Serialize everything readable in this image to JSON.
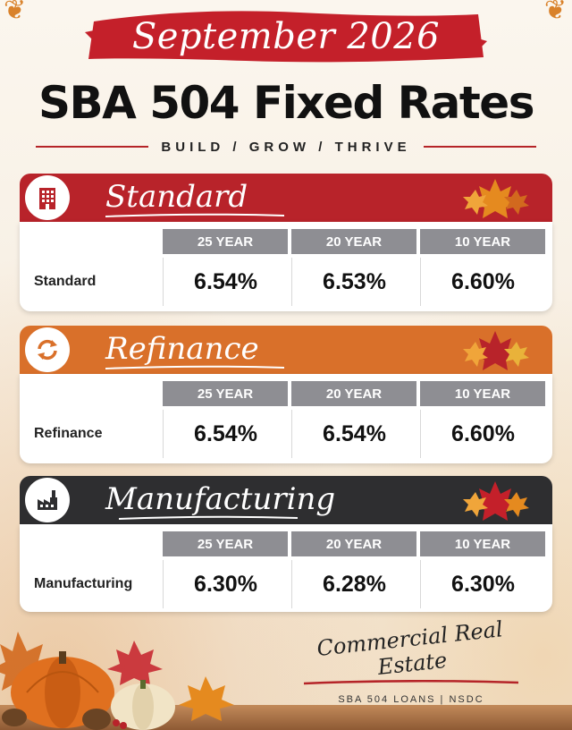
{
  "header": {
    "month": "September 2026",
    "title": "SBA 504 Fixed Rates",
    "tagline": "BUILD  /  GROW  /  THRIVE"
  },
  "colors": {
    "standard": "#b8232a",
    "refinance": "#d9702a",
    "manufacturing": "#2e2e30"
  },
  "cards": [
    {
      "name": "Standard",
      "icon": "building-icon",
      "row_label": "Standard",
      "columns": [
        "25 YEAR",
        "20 YEAR",
        "10 YEAR"
      ],
      "rates": [
        "6.54%",
        "6.53%",
        "6.60%"
      ]
    },
    {
      "name": "Refinance",
      "icon": "refresh-icon",
      "row_label": "Refinance",
      "columns": [
        "25 YEAR",
        "20 YEAR",
        "10 YEAR"
      ],
      "rates": [
        "6.54%",
        "6.54%",
        "6.60%"
      ]
    },
    {
      "name": "Manufacturing",
      "icon": "factory-icon",
      "row_label": "Manufacturing",
      "columns": [
        "25 YEAR",
        "20 YEAR",
        "10 YEAR"
      ],
      "rates": [
        "6.30%",
        "6.28%",
        "6.30%"
      ]
    }
  ],
  "footer": {
    "brand": "Commercial Real Estate",
    "sub": "SBA 504 LOANS  |  NSDC"
  }
}
